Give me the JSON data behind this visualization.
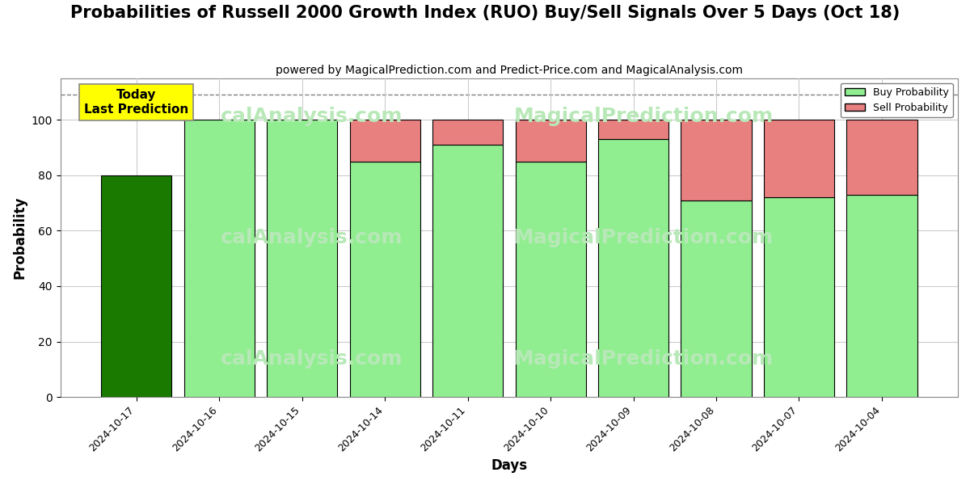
{
  "title": "Probabilities of Russell 2000 Growth Index (RUO) Buy/Sell Signals Over 5 Days (Oct 18)",
  "subtitle": "powered by MagicalPrediction.com and Predict-Price.com and MagicalAnalysis.com",
  "xlabel": "Days",
  "ylabel": "Probability",
  "days": [
    "2024-10-17",
    "2024-10-16",
    "2024-10-15",
    "2024-10-14",
    "2024-10-11",
    "2024-10-10",
    "2024-10-09",
    "2024-10-08",
    "2024-10-07",
    "2024-10-04"
  ],
  "buy_probs": [
    80,
    100,
    100,
    85,
    91,
    85,
    93,
    71,
    72,
    73
  ],
  "sell_probs": [
    0,
    0,
    0,
    15,
    9,
    15,
    7,
    29,
    28,
    27
  ],
  "today_bar_color": "#1a7a00",
  "other_buy_color": "#90ee90",
  "sell_color": "#e88080",
  "today_label": "Today\nLast Prediction",
  "today_label_bg": "#ffff00",
  "dashed_line_y": 109,
  "ylim": [
    0,
    115
  ],
  "yticks": [
    0,
    20,
    40,
    60,
    80,
    100
  ],
  "watermark_color": "#b8e8b8",
  "background_color": "#ffffff",
  "grid_color": "#cccccc",
  "bar_edge_color": "#000000",
  "bar_edge_width": 0.8,
  "legend_buy_color": "#90ee90",
  "legend_sell_color": "#e88080",
  "title_fontsize": 15,
  "subtitle_fontsize": 10,
  "axis_label_fontsize": 12,
  "bar_width": 0.85
}
